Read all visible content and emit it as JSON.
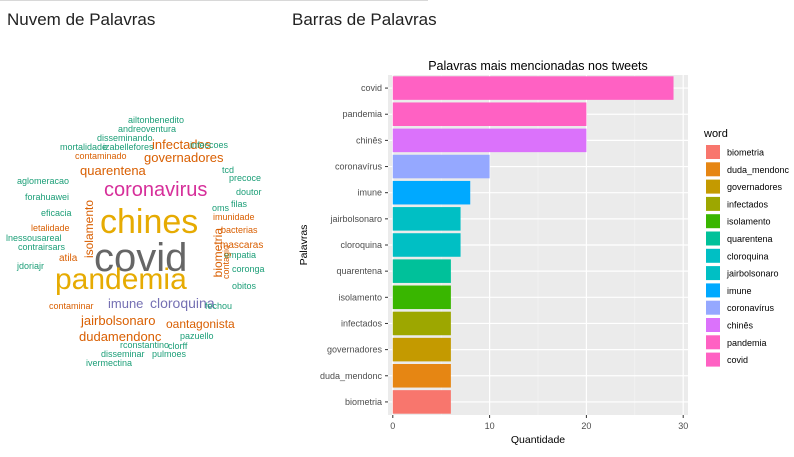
{
  "panels": {
    "wordcloud_title": "Nuvem de Palavras",
    "bar_title": "Barras de Palavras"
  },
  "colors": {
    "panel_bg": "#ebebeb",
    "grid": "#ffffff",
    "cloud_green": "#1b9e77",
    "cloud_orange": "#d95f02",
    "cloud_purple": "#7570b3",
    "cloud_gold": "#e6ab02",
    "cloud_gray": "#666666"
  },
  "wordcloud": {
    "words": [
      {
        "text": "covid",
        "color": "#666666",
        "size": 40
      },
      {
        "text": "chines",
        "color": "#e6ab02",
        "size": 34
      },
      {
        "text": "pandemia",
        "color": "#e6ab02",
        "size": 30
      },
      {
        "text": "coronavirus",
        "color": "#d62f9a",
        "size": 20
      },
      {
        "text": "governadores",
        "color": "#d95f02",
        "size": 13
      },
      {
        "text": "quarentena",
        "color": "#d95f02",
        "size": 13
      },
      {
        "text": "infectados",
        "color": "#d95f02",
        "size": 13
      },
      {
        "text": "isolamento",
        "color": "#d95f02",
        "size": 12
      },
      {
        "text": "biometria",
        "color": "#d95f02",
        "size": 12
      },
      {
        "text": "imune",
        "color": "#7570b3",
        "size": 13
      },
      {
        "text": "cloroquina",
        "color": "#7570b3",
        "size": 14
      },
      {
        "text": "jairbolsonaro",
        "color": "#d95f02",
        "size": 13
      },
      {
        "text": "oantagonista",
        "color": "#d95f02",
        "size": 12
      },
      {
        "text": "dudamendonc",
        "color": "#d95f02",
        "size": 13
      },
      {
        "text": "ailtonbenedito",
        "color": "#1b9e77",
        "size": 9
      },
      {
        "text": "andreoventura",
        "color": "#1b9e77",
        "size": 9
      },
      {
        "text": "disseminando",
        "color": "#1b9e77",
        "size": 9
      },
      {
        "text": "izabellefores",
        "color": "#1b9e77",
        "size": 9
      },
      {
        "text": "mortalidade",
        "color": "#1b9e77",
        "size": 9
      },
      {
        "text": "infeccoes",
        "color": "#1b9e77",
        "size": 9
      },
      {
        "text": "contaminado",
        "color": "#d95f02",
        "size": 9
      },
      {
        "text": "tcd",
        "color": "#1b9e77",
        "size": 9
      },
      {
        "text": "precoce",
        "color": "#1b9e77",
        "size": 9
      },
      {
        "text": "aglomeracao",
        "color": "#1b9e77",
        "size": 9
      },
      {
        "text": "doutor",
        "color": "#1b9e77",
        "size": 9
      },
      {
        "text": "forahuawei",
        "color": "#1b9e77",
        "size": 9
      },
      {
        "text": "filas",
        "color": "#1b9e77",
        "size": 9
      },
      {
        "text": "oms",
        "color": "#1b9e77",
        "size": 9
      },
      {
        "text": "eficacia",
        "color": "#1b9e77",
        "size": 9
      },
      {
        "text": "imunidade",
        "color": "#d95f02",
        "size": 9
      },
      {
        "text": "letalidade",
        "color": "#d95f02",
        "size": 9
      },
      {
        "text": "bacterias",
        "color": "#d95f02",
        "size": 9
      },
      {
        "text": "lnessousareal",
        "color": "#1b9e77",
        "size": 9
      },
      {
        "text": "contrairsars",
        "color": "#1b9e77",
        "size": 9
      },
      {
        "text": "mascaras",
        "color": "#d95f02",
        "size": 10
      },
      {
        "text": "empatia",
        "color": "#1b9e77",
        "size": 9
      },
      {
        "text": "atila",
        "color": "#d95f02",
        "size": 10
      },
      {
        "text": "jdoriajr",
        "color": "#1b9e77",
        "size": 9
      },
      {
        "text": "coronga",
        "color": "#1b9e77",
        "size": 9
      },
      {
        "text": "contagio",
        "color": "#d95f02",
        "size": 9
      },
      {
        "text": "obitos",
        "color": "#1b9e77",
        "size": 9
      },
      {
        "text": "contaminar",
        "color": "#d95f02",
        "size": 9
      },
      {
        "text": "fechou",
        "color": "#1b9e77",
        "size": 9
      },
      {
        "text": "pazuello",
        "color": "#1b9e77",
        "size": 9
      },
      {
        "text": "rconstantino",
        "color": "#1b9e77",
        "size": 9
      },
      {
        "text": "clorff",
        "color": "#1b9e77",
        "size": 9
      },
      {
        "text": "disseminar",
        "color": "#1b9e77",
        "size": 9
      },
      {
        "text": "pulmoes",
        "color": "#1b9e77",
        "size": 9
      },
      {
        "text": "ivermectina",
        "color": "#1b9e77",
        "size": 9
      }
    ]
  },
  "chart_data": {
    "type": "bar",
    "orientation": "horizontal",
    "title": "Palavras mais mencionadas nos tweets",
    "xlabel": "Quantidade",
    "ylabel": "Palavras",
    "xlim": [
      0,
      30
    ],
    "xticks": [
      0,
      10,
      20,
      30
    ],
    "grid": true,
    "legend_title": "word",
    "legend_position": "right",
    "categories": [
      "covid",
      "pandemia",
      "chinês",
      "coronavírus",
      "imune",
      "jairbolsonaro",
      "cloroquina",
      "quarentena",
      "isolamento",
      "infectados",
      "governadores",
      "duda_mendonc",
      "biometria"
    ],
    "values": [
      29,
      20,
      20,
      10,
      8,
      7,
      7,
      6,
      6,
      6,
      6,
      6,
      6
    ],
    "bar_colors": [
      "#FF61C3",
      "#FF61C3",
      "#DB72FB",
      "#95A8FF",
      "#00A9FF",
      "#00BFC4",
      "#00BFC4",
      "#00C19A",
      "#39B600",
      "#9DA700",
      "#C49A00",
      "#E68613",
      "#F8766D"
    ],
    "legend": [
      {
        "label": "biometria",
        "color": "#F8766D"
      },
      {
        "label": "duda_mendonc",
        "color": "#E68613"
      },
      {
        "label": "governadores",
        "color": "#C49A00"
      },
      {
        "label": "infectados",
        "color": "#9DA700"
      },
      {
        "label": "isolamento",
        "color": "#39B600"
      },
      {
        "label": "quarentena",
        "color": "#00C19A"
      },
      {
        "label": "cloroquina",
        "color": "#00BFC4"
      },
      {
        "label": "jairbolsonaro",
        "color": "#00BFC4"
      },
      {
        "label": "imune",
        "color": "#00A9FF"
      },
      {
        "label": "coronavírus",
        "color": "#95A8FF"
      },
      {
        "label": "chinês",
        "color": "#DB72FB"
      },
      {
        "label": "pandemia",
        "color": "#FF61C3"
      },
      {
        "label": "covid",
        "color": "#FF61C3"
      }
    ]
  }
}
